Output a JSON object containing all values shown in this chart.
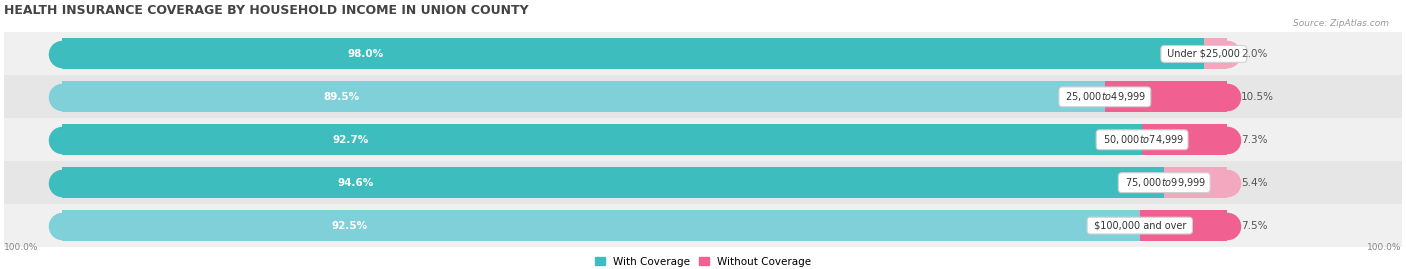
{
  "title": "HEALTH INSURANCE COVERAGE BY HOUSEHOLD INCOME IN UNION COUNTY",
  "source": "Source: ZipAtlas.com",
  "categories": [
    "Under $25,000",
    "$25,000 to $49,999",
    "$50,000 to $74,999",
    "$75,000 to $99,999",
    "$100,000 and over"
  ],
  "with_coverage": [
    98.0,
    89.5,
    92.7,
    94.6,
    92.5
  ],
  "without_coverage": [
    2.0,
    10.5,
    7.3,
    5.4,
    7.5
  ],
  "color_with_1": "#3dbdbd",
  "color_with_2": "#7fd0d8",
  "color_without_1": "#f06090",
  "color_without_2": "#f4a8c0",
  "row_bg_odd": "#f0f0f0",
  "row_bg_even": "#e6e6e6",
  "figsize": [
    14.06,
    2.69
  ],
  "dpi": 100
}
